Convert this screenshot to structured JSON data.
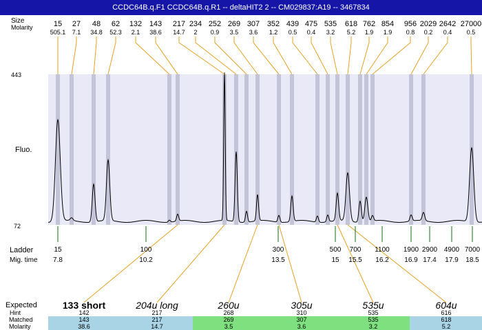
{
  "window": {
    "title": "CCDC64B.q.F1  CCDC64B.q.R1 -- deltaHIT2 2 -- CM029837:A19 -- 3467834"
  },
  "labels": {
    "size": "Size",
    "molarity": "Molarity",
    "fluo": "Fluo.",
    "ladder": "Ladder",
    "mig_time": "Mig. time",
    "expected": "Expected",
    "hint": "Hint",
    "matched": "Matched",
    "molarity_row": "Molarity",
    "y_top": "443",
    "y_bottom": "72"
  },
  "colors": {
    "title_bg": "#1515a8",
    "plot_bg": "#e9e9f8",
    "band": "#c4c4d8",
    "connector": "#e8a020",
    "ladder_tick": "#107010",
    "cell_blue": "#a9d4e6",
    "cell_green": "#7fe07f"
  },
  "chart_data": {
    "type": "line",
    "ylim": [
      72,
      443
    ],
    "peaks": [
      {
        "size": "15",
        "molarity": "505.1"
      },
      {
        "size": "27",
        "molarity": "7.1"
      },
      {
        "size": "48",
        "molarity": "34.8"
      },
      {
        "size": "62",
        "molarity": "52.3"
      },
      {
        "size": "132",
        "molarity": "2.1"
      },
      {
        "size": "143",
        "molarity": "38.6"
      },
      {
        "size": "217",
        "molarity": "14.7"
      },
      {
        "size": "234",
        "molarity": "2"
      },
      {
        "size": "252",
        "molarity": "0.9"
      },
      {
        "size": "269",
        "molarity": "3.5"
      },
      {
        "size": "307",
        "molarity": "3.6"
      },
      {
        "size": "352",
        "molarity": "1.2"
      },
      {
        "size": "439",
        "molarity": "0.5"
      },
      {
        "size": "475",
        "molarity": "0.4"
      },
      {
        "size": "535",
        "molarity": "3.2"
      },
      {
        "size": "618",
        "molarity": "5.2"
      },
      {
        "size": "762",
        "molarity": "1.9"
      },
      {
        "size": "854",
        "molarity": "1.9"
      },
      {
        "size": "956",
        "molarity": "0.8"
      },
      {
        "size": "2029",
        "molarity": "0.2"
      },
      {
        "size": "2642",
        "molarity": "0.4"
      },
      {
        "size": "27000",
        "molarity": "0.5"
      }
    ],
    "ladder": [
      {
        "size": "15",
        "time": "7.8"
      },
      {
        "size": "100",
        "time": "10.2"
      },
      {
        "size": "300",
        "time": "13.5"
      },
      {
        "size": "500",
        "time": "15"
      },
      {
        "size": "700",
        "time": "15.5"
      },
      {
        "size": "1100",
        "time": "16.2"
      },
      {
        "size": "1900",
        "time": "16.9"
      },
      {
        "size": "2900",
        "time": "17.4"
      },
      {
        "size": "4900",
        "time": "17.9"
      },
      {
        "size": "7000",
        "time": "18.5"
      }
    ],
    "expected": [
      {
        "label": "133 short",
        "hint": "142",
        "matched": "143",
        "molarity": "38.6"
      },
      {
        "label": "204u long",
        "hint": "217",
        "matched": "217",
        "molarity": "14.7"
      },
      {
        "label": "260u",
        "hint": "268",
        "matched": "269",
        "molarity": "3.5"
      },
      {
        "label": "305u",
        "hint": "310",
        "matched": "307",
        "molarity": "3.6"
      },
      {
        "label": "535u",
        "hint": "535",
        "matched": "535",
        "molarity": "3.2"
      },
      {
        "label": "604u",
        "hint": "616",
        "matched": "618",
        "molarity": "5.2"
      }
    ]
  }
}
